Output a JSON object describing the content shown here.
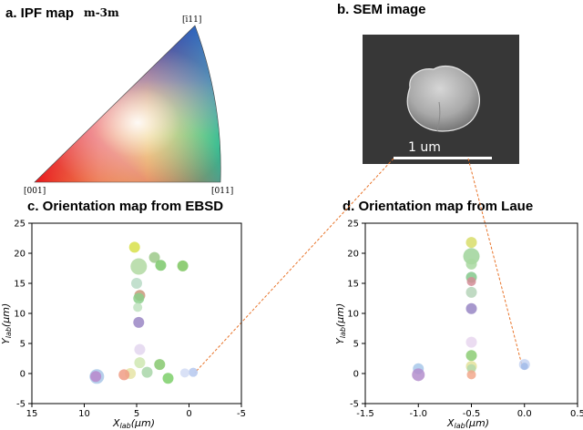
{
  "panels": {
    "a": {
      "title": "a. IPF map",
      "symmetry": "m-3m",
      "corners": {
        "c001": "[001]",
        "c011": "[011]",
        "c111": "[ī11]"
      }
    },
    "b": {
      "title": "b. SEM image",
      "scale_bar": "1 um"
    },
    "c": {
      "title": "c. Orientation map from EBSD"
    },
    "d": {
      "title": "d. Orientation map from Laue"
    }
  },
  "axis_labels": {
    "x_main": "X",
    "x_sub": "lab",
    "x_unit": "(μm)",
    "y_main": "Y",
    "y_sub": "lab",
    "y_unit": "(μm)"
  },
  "colors": {
    "connector": "#e8742a",
    "sem_background": "#3c3c3c"
  },
  "chart_data": [
    {
      "id": "ebsd",
      "type": "scatter",
      "title": "c. Orientation map from EBSD",
      "xlabel": "Xlab(μm)",
      "ylabel": "Ylab(μm)",
      "xlim": [
        15,
        -5
      ],
      "ylim": [
        -5,
        25
      ],
      "xticks": [
        15,
        10,
        5,
        0,
        -5
      ],
      "yticks": [
        -5,
        0,
        5,
        10,
        15,
        20,
        25
      ],
      "grid": false,
      "points": [
        {
          "x": 5.2,
          "y": 21.0,
          "size": 6,
          "color": "#d8e04a"
        },
        {
          "x": 3.3,
          "y": 19.3,
          "size": 6,
          "color": "#9cc98a"
        },
        {
          "x": 4.8,
          "y": 17.8,
          "size": 9,
          "color": "#b2d9a2"
        },
        {
          "x": 2.7,
          "y": 18.0,
          "size": 6,
          "color": "#7bc86b"
        },
        {
          "x": 0.6,
          "y": 17.9,
          "size": 6,
          "color": "#7dc65f"
        },
        {
          "x": 5.0,
          "y": 15.0,
          "size": 6,
          "color": "#b9dbc6"
        },
        {
          "x": 4.7,
          "y": 13.0,
          "size": 6,
          "color": "#c8987a"
        },
        {
          "x": 4.8,
          "y": 12.5,
          "size": 6,
          "color": "#8bcf8b"
        },
        {
          "x": 4.9,
          "y": 11.0,
          "size": 5,
          "color": "#c0e2c0"
        },
        {
          "x": 4.8,
          "y": 8.5,
          "size": 6,
          "color": "#9a86c4"
        },
        {
          "x": 4.7,
          "y": 4.0,
          "size": 6,
          "color": "#e3d6ee"
        },
        {
          "x": 4.7,
          "y": 1.8,
          "size": 6,
          "color": "#cfe8b2"
        },
        {
          "x": 2.8,
          "y": 1.5,
          "size": 6,
          "color": "#86c86e"
        },
        {
          "x": 5.6,
          "y": 0.0,
          "size": 6,
          "color": "#e6e4a6"
        },
        {
          "x": 4.0,
          "y": 0.2,
          "size": 6,
          "color": "#a8d6a8"
        },
        {
          "x": 2.0,
          "y": -0.8,
          "size": 6,
          "color": "#7ccf6a"
        },
        {
          "x": 6.2,
          "y": -0.2,
          "size": 6,
          "color": "#f09c85"
        },
        {
          "x": 8.8,
          "y": -0.5,
          "size": 8,
          "color": "#a9c7e8"
        },
        {
          "x": 8.9,
          "y": -0.5,
          "size": 6,
          "color": "#b888cc"
        },
        {
          "x": -0.4,
          "y": 0.2,
          "size": 5,
          "color": "#b5c8ef"
        },
        {
          "x": 0.4,
          "y": 0.1,
          "size": 5,
          "color": "#d2dcf4"
        }
      ]
    },
    {
      "id": "laue",
      "type": "scatter",
      "title": "d. Orientation map from Laue",
      "xlabel": "Xlab(μm)",
      "ylabel": "Ylab(μm)",
      "xlim": [
        -1.5,
        0.5
      ],
      "ylim": [
        -5,
        25
      ],
      "xticks": [
        "-1.5",
        "-1.0",
        "-0.5",
        "0.0",
        "0.5"
      ],
      "yticks": [
        -5,
        0,
        5,
        10,
        15,
        20,
        25
      ],
      "grid": false,
      "points": [
        {
          "x": -0.5,
          "y": 21.8,
          "size": 6,
          "color": "#d8dd6a"
        },
        {
          "x": -0.5,
          "y": 19.5,
          "size": 9,
          "color": "#9fd49a"
        },
        {
          "x": -0.5,
          "y": 18.2,
          "size": 6,
          "color": "#a8d8a0"
        },
        {
          "x": -0.5,
          "y": 16.0,
          "size": 6,
          "color": "#84c88c"
        },
        {
          "x": -0.5,
          "y": 15.3,
          "size": 5,
          "color": "#d48c96"
        },
        {
          "x": -0.5,
          "y": 13.5,
          "size": 6,
          "color": "#b5d4b8"
        },
        {
          "x": -0.5,
          "y": 10.8,
          "size": 6,
          "color": "#9886c4"
        },
        {
          "x": -0.5,
          "y": 5.2,
          "size": 6,
          "color": "#e8d6ee"
        },
        {
          "x": -0.5,
          "y": 3.0,
          "size": 6,
          "color": "#8ccc74"
        },
        {
          "x": -0.5,
          "y": 1.2,
          "size": 6,
          "color": "#e4e29a"
        },
        {
          "x": -0.5,
          "y": 0.8,
          "size": 5,
          "color": "#b4d8ac"
        },
        {
          "x": -0.5,
          "y": -0.2,
          "size": 5,
          "color": "#f2a88c"
        },
        {
          "x": -1.0,
          "y": 0.8,
          "size": 6,
          "color": "#a8c8ea"
        },
        {
          "x": -1.0,
          "y": -0.2,
          "size": 7,
          "color": "#b48ecc"
        },
        {
          "x": 0.0,
          "y": 1.5,
          "size": 6,
          "color": "#c6d4f2"
        },
        {
          "x": 0.0,
          "y": 1.2,
          "size": 4,
          "color": "#a2bbe8"
        }
      ]
    }
  ]
}
